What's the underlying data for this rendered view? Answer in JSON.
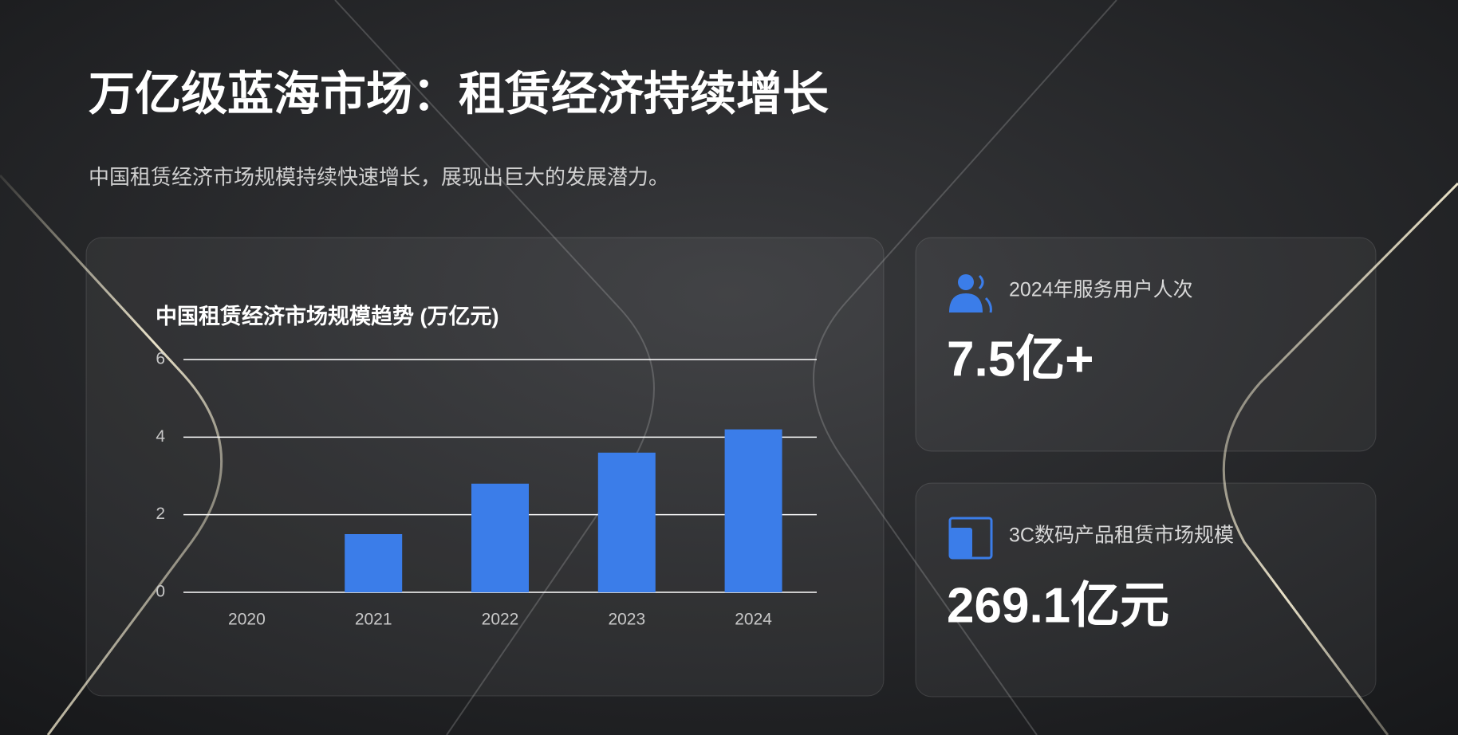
{
  "header": {
    "title": "万亿级蓝海市场：租赁经济持续增长",
    "subtitle": "中国租赁经济市场规模持续快速增长，展现出巨大的发展潜力。"
  },
  "chart_data": {
    "type": "bar",
    "title": "中国租赁经济市场规模趋势 (万亿元)",
    "categories": [
      "2020",
      "2021",
      "2022",
      "2023",
      "2024"
    ],
    "values": [
      0,
      1.5,
      2.8,
      3.6,
      4.2
    ],
    "color": "#3b7de9",
    "ylim": [
      0,
      6
    ],
    "yticks": [
      0,
      2,
      4,
      6
    ],
    "grid": true
  },
  "stats": [
    {
      "label": "2024年服务用户人次",
      "value": "7.5亿+"
    },
    {
      "label": "3C数码产品租赁市场规模",
      "value": "269.1亿元"
    }
  ]
}
